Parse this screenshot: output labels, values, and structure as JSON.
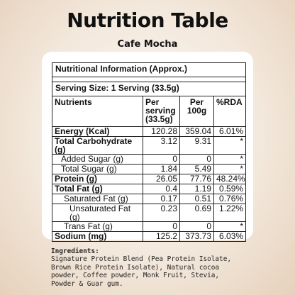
{
  "title": "Nutrition Table",
  "subtitle": "Cafe Mocha",
  "table": {
    "info_heading": "Nutritional Information (Approx.)",
    "serving_size": "Serving Size: 1 Serving (33.5g)",
    "columns": [
      "Nutrients",
      "Per serving (33.5g)",
      "Per 100g",
      "%RDA"
    ],
    "rows": [
      {
        "name": "Energy (Kcal)",
        "per_serving": "120.28",
        "per_100g": "359.04",
        "rda": "6.01%"
      },
      {
        "name": "Total Carbohydrate (g)",
        "per_serving": "3.12",
        "per_100g": "9.31",
        "rda": "*"
      },
      {
        "name": "Added Sugar (g)",
        "per_serving": "0",
        "per_100g": "0",
        "rda": "*"
      },
      {
        "name": "Total Sugar (g)",
        "per_serving": "1.84",
        "per_100g": "5.49",
        "rda": "*"
      },
      {
        "name": "Protein (g)",
        "per_serving": "26.05",
        "per_100g": "77.76",
        "rda": "48.24%"
      },
      {
        "name": "Total Fat (g)",
        "per_serving": "0.4",
        "per_100g": "1.19",
        "rda": "0.59%"
      },
      {
        "name": "Saturated Fat (g)",
        "per_serving": "0.17",
        "per_100g": "0.51",
        "rda": "0.76%"
      },
      {
        "name": "Unsaturated Fat (g)",
        "per_serving": "0.23",
        "per_100g": "0.69",
        "rda": "1.22%"
      },
      {
        "name": "Trans Fat (g)",
        "per_serving": "0",
        "per_100g": "0",
        "rda": "*"
      },
      {
        "name": "Sodium (mg)",
        "per_serving": "125.2",
        "per_100g": "373.73",
        "rda": "6.03%"
      }
    ]
  },
  "ingredients": {
    "heading": "Ingredients:",
    "lines": [
      "Signature Protein Blend (Pea Protein Isolate,",
      "Brown Rice Protein Isolate), Natural cocoa",
      "powder, Coffee powder, Monk Fruit, Stevia,",
      "Powder & Guar gum."
    ]
  },
  "colors": {
    "background": "#f3e8dc",
    "card": "#ffffff",
    "text": "#111111"
  }
}
